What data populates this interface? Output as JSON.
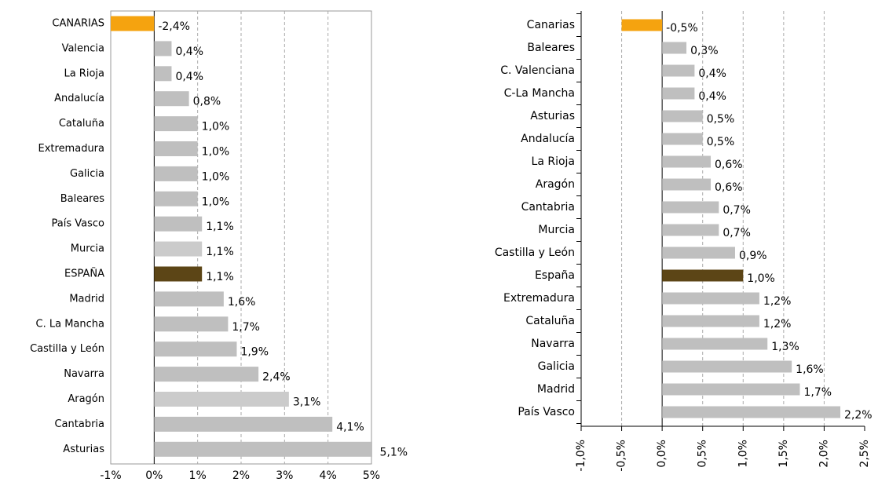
{
  "chart_data": [
    {
      "type": "bar",
      "orientation": "horizontal",
      "categories": [
        "CANARIAS",
        "Valencia",
        "La Rioja",
        "Andalucía",
        "Cataluña",
        "Extremadura",
        "Galicia",
        "Baleares",
        "País Vasco",
        "Murcia",
        "ESPAÑA",
        "Madrid",
        "C. La Mancha",
        "Castilla y León",
        "Navarra",
        "Aragón",
        "Cantabria",
        "Asturias"
      ],
      "values": [
        -2.4,
        0.4,
        0.4,
        0.8,
        1.0,
        1.0,
        1.0,
        1.0,
        1.1,
        1.1,
        1.1,
        1.6,
        1.7,
        1.9,
        2.4,
        3.1,
        4.1,
        5.1
      ],
      "value_labels": [
        "-2,4%",
        "0,4%",
        "0,4%",
        "0,8%",
        "1,0%",
        "1,0%",
        "1,0%",
        "1,0%",
        "1,1%",
        "1,1%",
        "1,1%",
        "1,6%",
        "1,7%",
        "1,9%",
        "2,4%",
        "3,1%",
        "4,1%",
        "5,1%"
      ],
      "colors": [
        "#f5a30f",
        "#bfbfbf",
        "#bfbfbf",
        "#bfbfbf",
        "#bfbfbf",
        "#bfbfbf",
        "#bfbfbf",
        "#bfbfbf",
        "#bfbfbf",
        "#cbcbcb",
        "#5c4516",
        "#bfbfbf",
        "#bfbfbf",
        "#bfbfbf",
        "#bfbfbf",
        "#cbcbcb",
        "#bfbfbf",
        "#bfbfbf"
      ],
      "xlim": [
        -1,
        5
      ],
      "xticks": [
        {
          "value": -1,
          "label": "-1%"
        },
        {
          "value": 0,
          "label": "0%"
        },
        {
          "value": 1,
          "label": "1%"
        },
        {
          "value": 2,
          "label": "2%"
        },
        {
          "value": 3,
          "label": "3%"
        },
        {
          "value": 4,
          "label": "4%"
        },
        {
          "value": 5,
          "label": "5%"
        }
      ],
      "grid": true
    },
    {
      "type": "bar",
      "orientation": "horizontal",
      "categories": [
        "Canarias",
        "Baleares",
        "C. Valenciana",
        "C-La Mancha",
        "Asturias",
        "Andalucía",
        "La Rioja",
        "Aragón",
        "Cantabria",
        "Murcia",
        "Castilla y León",
        "España",
        "Extremadura",
        "Cataluña",
        "Navarra",
        "Galicia",
        "Madrid",
        "País Vasco"
      ],
      "values": [
        -0.5,
        0.3,
        0.4,
        0.4,
        0.5,
        0.5,
        0.6,
        0.6,
        0.7,
        0.7,
        0.9,
        1.0,
        1.2,
        1.2,
        1.3,
        1.6,
        1.7,
        2.2
      ],
      "value_labels": [
        "-0,5%",
        "0,3%",
        "0,4%",
        "0,4%",
        "0,5%",
        "0,5%",
        "0,6%",
        "0,6%",
        "0,7%",
        "0,7%",
        "0,9%",
        "1,0%",
        "1,2%",
        "1,2%",
        "1,3%",
        "1,6%",
        "1,7%",
        "2,2%"
      ],
      "colors": [
        "#f5a30f",
        "#bfbfbf",
        "#bfbfbf",
        "#bfbfbf",
        "#bfbfbf",
        "#bfbfbf",
        "#bfbfbf",
        "#bfbfbf",
        "#bfbfbf",
        "#bfbfbf",
        "#bfbfbf",
        "#5c4516",
        "#bfbfbf",
        "#bfbfbf",
        "#bfbfbf",
        "#bfbfbf",
        "#bfbfbf",
        "#bfbfbf"
      ],
      "xlim": [
        -1,
        2.5
      ],
      "xticks": [
        {
          "value": -1,
          "label": "-1,0%"
        },
        {
          "value": -0.5,
          "label": "-0,5%"
        },
        {
          "value": 0,
          "label": "0,0%"
        },
        {
          "value": 0.5,
          "label": "0,5%"
        },
        {
          "value": 1,
          "label": "1,0%"
        },
        {
          "value": 1.5,
          "label": "1,5%"
        },
        {
          "value": 2,
          "label": "2,0%"
        },
        {
          "value": 2.5,
          "label": "2,5%"
        }
      ],
      "grid": true
    }
  ]
}
